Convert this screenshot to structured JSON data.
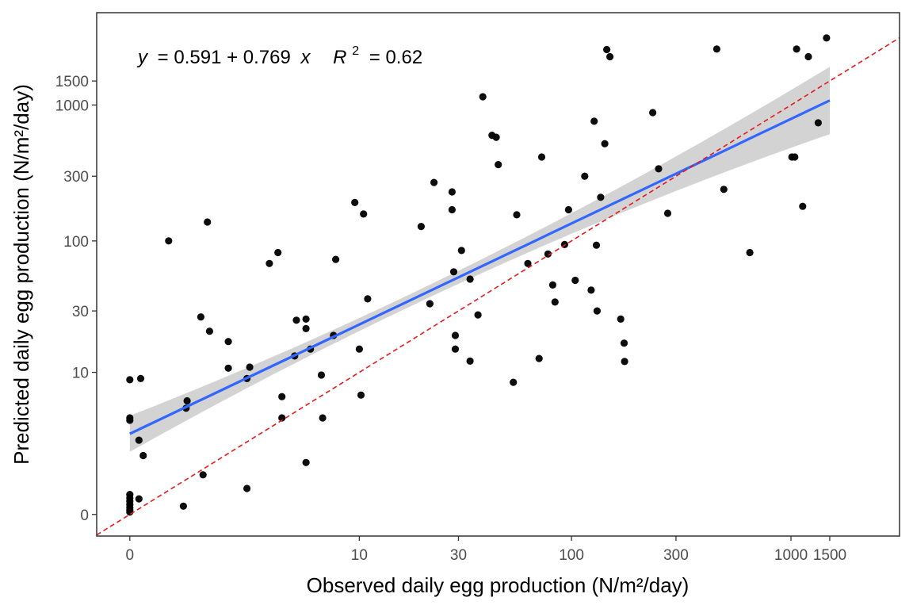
{
  "chart_data": {
    "type": "scatter",
    "title": "",
    "xlabel": "Observed daily egg production (N/m²/day)",
    "ylabel": "Predicted daily egg production (N/m²/day)",
    "scale": "log1p",
    "xlim": [
      0,
      2200
    ],
    "ylim": [
      0,
      3300
    ],
    "x_ticks": [
      {
        "value": 0,
        "label": "0"
      },
      {
        "value": 10,
        "label": "10"
      },
      {
        "value": 30,
        "label": "30"
      },
      {
        "value": 100,
        "label": "100"
      },
      {
        "value": 300,
        "label": "300"
      },
      {
        "value": 1000,
        "label": "1000"
      },
      {
        "value": 1500,
        "label": "1500"
      }
    ],
    "y_ticks": [
      {
        "value": 0,
        "label": "0"
      },
      {
        "value": 10,
        "label": "10"
      },
      {
        "value": 30,
        "label": "30"
      },
      {
        "value": 100,
        "label": "100"
      },
      {
        "value": 300,
        "label": "300"
      },
      {
        "value": 1000,
        "label": "1000"
      },
      {
        "value": 1500,
        "label": "1500"
      }
    ],
    "equation": {
      "lhs": "y",
      "rhs": "= 0.591 + 0.769",
      "var": "x",
      "r2_label": "R",
      "r2_exp": "2",
      "r2_value": "= 0.62"
    },
    "fit": {
      "intercept": 0.591,
      "slope": 0.769,
      "x_range": [
        0,
        1500
      ],
      "color": "#3366FF",
      "band_color": "#d3d3d3"
    },
    "reference_line": {
      "slope": 1,
      "intercept": 0,
      "color": "#e41a1c",
      "dash": true
    },
    "grid": false,
    "points": [
      {
        "x": 0,
        "y": 0.04
      },
      {
        "x": 0,
        "y": 0.08
      },
      {
        "x": 0,
        "y": 0.12
      },
      {
        "x": 0,
        "y": 0.18
      },
      {
        "x": 0,
        "y": 0.25
      },
      {
        "x": 0,
        "y": 0.32
      },
      {
        "x": 0,
        "y": 0.4
      },
      {
        "x": 0,
        "y": 3.9
      },
      {
        "x": 0,
        "y": 4.1
      },
      {
        "x": 0,
        "y": 8.7
      },
      {
        "x": 0.1,
        "y": 2.5
      },
      {
        "x": 0.1,
        "y": 0.3
      },
      {
        "x": 0.12,
        "y": 8.9
      },
      {
        "x": 0.15,
        "y": 1.7
      },
      {
        "x": 0.5,
        "y": 100
      },
      {
        "x": 0.75,
        "y": 0.15
      },
      {
        "x": 0.8,
        "y": 5.0
      },
      {
        "x": 0.82,
        "y": 5.8
      },
      {
        "x": 1.1,
        "y": 27
      },
      {
        "x": 1.15,
        "y": 0.95
      },
      {
        "x": 1.25,
        "y": 138
      },
      {
        "x": 1.3,
        "y": 21
      },
      {
        "x": 1.8,
        "y": 10.8
      },
      {
        "x": 1.8,
        "y": 17.5
      },
      {
        "x": 2.4,
        "y": 8.9
      },
      {
        "x": 2.5,
        "y": 11
      },
      {
        "x": 2.4,
        "y": 0.55
      },
      {
        "x": 3.3,
        "y": 68
      },
      {
        "x": 3.7,
        "y": 82
      },
      {
        "x": 3.9,
        "y": 6.3
      },
      {
        "x": 3.9,
        "y": 4.1
      },
      {
        "x": 4.6,
        "y": 13.5
      },
      {
        "x": 4.7,
        "y": 25.5
      },
      {
        "x": 5.3,
        "y": 22
      },
      {
        "x": 5.3,
        "y": 26
      },
      {
        "x": 5.3,
        "y": 1.4
      },
      {
        "x": 5.6,
        "y": 15.3
      },
      {
        "x": 6.4,
        "y": 9.5
      },
      {
        "x": 6.5,
        "y": 4.1
      },
      {
        "x": 7.4,
        "y": 19.5
      },
      {
        "x": 7.6,
        "y": 73
      },
      {
        "x": 9.5,
        "y": 192
      },
      {
        "x": 10,
        "y": 15.3
      },
      {
        "x": 10.2,
        "y": 6.5
      },
      {
        "x": 10.5,
        "y": 158
      },
      {
        "x": 11,
        "y": 37
      },
      {
        "x": 20,
        "y": 128
      },
      {
        "x": 22,
        "y": 34
      },
      {
        "x": 23,
        "y": 270
      },
      {
        "x": 28,
        "y": 230
      },
      {
        "x": 28,
        "y": 170
      },
      {
        "x": 28.5,
        "y": 59
      },
      {
        "x": 29,
        "y": 19.5
      },
      {
        "x": 29,
        "y": 15.3
      },
      {
        "x": 31,
        "y": 85
      },
      {
        "x": 34,
        "y": 52
      },
      {
        "x": 34,
        "y": 12.3
      },
      {
        "x": 37,
        "y": 28
      },
      {
        "x": 39,
        "y": 1150
      },
      {
        "x": 43,
        "y": 600
      },
      {
        "x": 45,
        "y": 580
      },
      {
        "x": 46,
        "y": 365
      },
      {
        "x": 54,
        "y": 8.3
      },
      {
        "x": 56,
        "y": 156
      },
      {
        "x": 63,
        "y": 68
      },
      {
        "x": 71,
        "y": 12.9
      },
      {
        "x": 73,
        "y": 415
      },
      {
        "x": 78,
        "y": 80
      },
      {
        "x": 82,
        "y": 47
      },
      {
        "x": 84,
        "y": 35
      },
      {
        "x": 93,
        "y": 94
      },
      {
        "x": 97,
        "y": 170
      },
      {
        "x": 104,
        "y": 51
      },
      {
        "x": 115,
        "y": 300
      },
      {
        "x": 123,
        "y": 43
      },
      {
        "x": 127,
        "y": 760
      },
      {
        "x": 130,
        "y": 93
      },
      {
        "x": 131,
        "y": 30
      },
      {
        "x": 136,
        "y": 210
      },
      {
        "x": 142,
        "y": 520
      },
      {
        "x": 145,
        "y": 2550
      },
      {
        "x": 150,
        "y": 2260
      },
      {
        "x": 168,
        "y": 26
      },
      {
        "x": 174,
        "y": 17
      },
      {
        "x": 175,
        "y": 12.2
      },
      {
        "x": 235,
        "y": 880
      },
      {
        "x": 250,
        "y": 340
      },
      {
        "x": 275,
        "y": 160
      },
      {
        "x": 460,
        "y": 2570
      },
      {
        "x": 495,
        "y": 240
      },
      {
        "x": 650,
        "y": 82
      },
      {
        "x": 1010,
        "y": 415
      },
      {
        "x": 1040,
        "y": 415
      },
      {
        "x": 1060,
        "y": 2570
      },
      {
        "x": 1130,
        "y": 180
      },
      {
        "x": 1200,
        "y": 2260
      },
      {
        "x": 1330,
        "y": 740
      },
      {
        "x": 1450,
        "y": 3100
      }
    ]
  }
}
